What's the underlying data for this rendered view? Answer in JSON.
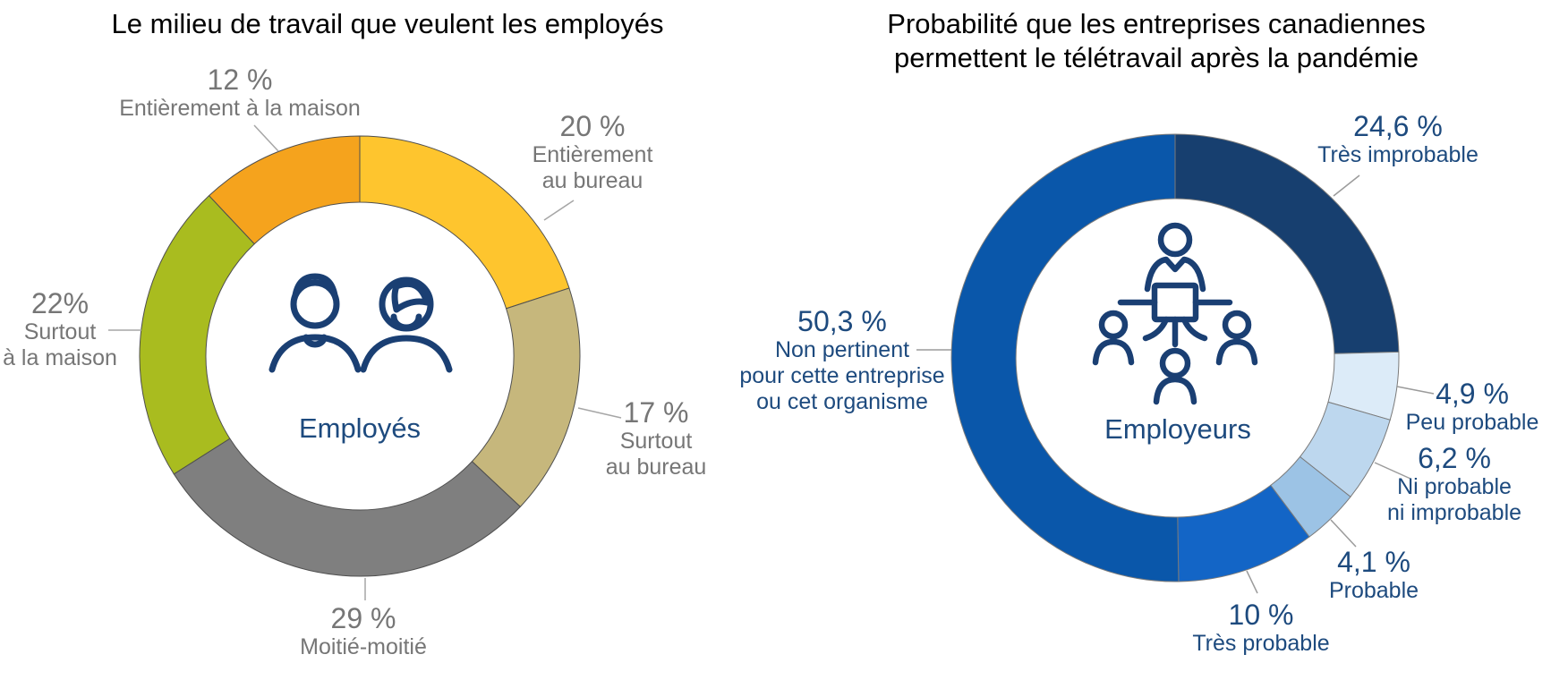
{
  "chart_data": [
    {
      "type": "pie",
      "variant": "donut",
      "title": "Le milieu de travail que veulent les employés",
      "title_lines": [
        "Le milieu de travail que veulent les employés"
      ],
      "center_label": "Employés",
      "center_icon": "man-and-woman-icon",
      "direction": "clockwise",
      "start_angle": "12-o-clock",
      "legend_position": "callouts-around-donut",
      "categories": [
        "Entièrement au bureau",
        "Surtout au bureau",
        "Moitié-moitié",
        "Surtout à la maison",
        "Entièrement à la maison"
      ],
      "values": [
        20,
        17,
        29,
        22,
        12
      ],
      "colors": [
        "#fec52e",
        "#c6b77c",
        "#7f7f7f",
        "#a9bc1f",
        "#f5a31d"
      ],
      "slice_border_color": "#4f4f4f",
      "label_color": "#767676",
      "leader_line_color": "#a6a6a6",
      "callouts": [
        {
          "value": "20 %",
          "lines": [
            "Entièrement",
            "au bureau"
          ]
        },
        {
          "value": "17 %",
          "lines": [
            "Surtout",
            "au bureau"
          ]
        },
        {
          "value": "29 %",
          "lines": [
            "Moitié-moitié"
          ]
        },
        {
          "value": "22%",
          "lines": [
            "Surtout",
            "à la maison"
          ]
        },
        {
          "value": "12 %",
          "lines": [
            "Entièrement à la maison"
          ]
        }
      ]
    },
    {
      "type": "pie",
      "variant": "donut",
      "title": "Probabilité que les entreprises canadiennes permettent le télétravail après la pandémie",
      "title_lines": [
        "Probabilité que les entreprises canadiennes",
        "permettent le télétravail après la pandémie"
      ],
      "center_label": "Employeurs",
      "center_icon": "team-around-laptop-icon",
      "direction": "clockwise",
      "start_angle": "12-o-clock",
      "legend_position": "callouts-around-donut",
      "categories": [
        "Très improbable",
        "Peu probable",
        "Ni probable ni improbable",
        "Probable",
        "Très probable",
        "Non pertinent pour cette entreprise ou cet organisme"
      ],
      "values": [
        24.6,
        4.9,
        6.2,
        4.1,
        10,
        50.3
      ],
      "colors": [
        "#173f6f",
        "#dcebf8",
        "#bdd7ee",
        "#9cc3e5",
        "#1365c6",
        "#0a57aa"
      ],
      "slice_border_color": "#7a7a7a",
      "label_color": "#1d4a7e",
      "leader_line_color": "#9b9b9b",
      "callouts": [
        {
          "value": "24,6 %",
          "lines": [
            "Très improbable"
          ]
        },
        {
          "value": "4,9 %",
          "lines": [
            "Peu probable"
          ]
        },
        {
          "value": "6,2 %",
          "lines": [
            "Ni probable",
            "ni improbable"
          ]
        },
        {
          "value": "4,1 %",
          "lines": [
            "Probable"
          ]
        },
        {
          "value": "10 %",
          "lines": [
            "Très probable"
          ]
        },
        {
          "value": "50,3 %",
          "lines": [
            "Non pertinent",
            "pour cette entreprise",
            "ou cet organisme"
          ]
        }
      ]
    }
  ],
  "style": {
    "title_color": "#000000",
    "center_label_color": "#1d4a7e",
    "icon_color": "#1a3f73",
    "background": "#ffffff"
  }
}
